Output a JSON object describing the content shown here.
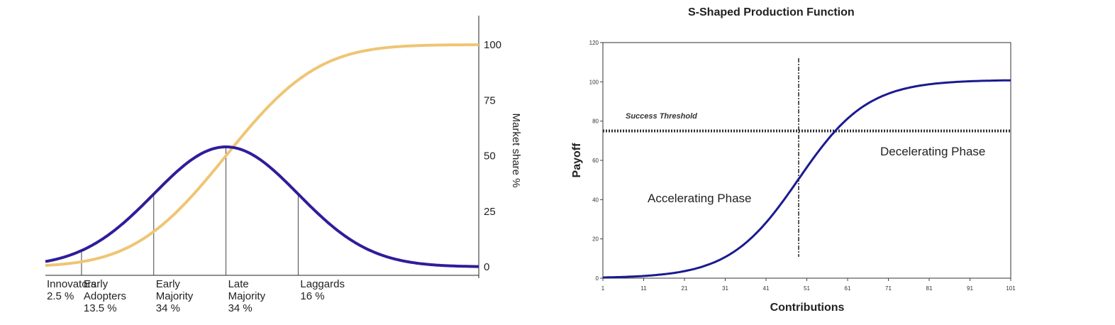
{
  "colors": {
    "bell": "#2e1d9a",
    "adoption": "#efc574",
    "s_curve": "#1b1a8f",
    "axis": "#222222"
  },
  "chart_data": [
    {
      "type": "line",
      "title": "",
      "y2label": "Market share %",
      "y2_ticks": [
        "100",
        "75",
        "50",
        "25",
        "0"
      ],
      "ylim": [
        0,
        100
      ],
      "x_range": [
        -2.5,
        3.5
      ],
      "segments": [
        {
          "name": "Innovators",
          "percent": "2.5 %",
          "boundary_sd": -2
        },
        {
          "name": "Early\nAdopters",
          "percent": "13.5 %",
          "boundary_sd": -1
        },
        {
          "name": "Early\nMajority",
          "percent": "34 %",
          "boundary_sd": 0
        },
        {
          "name": "Late\nMajority",
          "percent": "34 %",
          "boundary_sd": 1
        },
        {
          "name": "Laggards",
          "percent": "16 %",
          "boundary_sd": 3.5
        }
      ],
      "series": [
        {
          "kind": "bell",
          "peak": 54,
          "shape": "normal"
        },
        {
          "kind": "cumulative",
          "shape": "normal-cdf",
          "max": 100
        }
      ]
    },
    {
      "type": "line",
      "title": "S-Shaped Production Function",
      "xlabel": "Contributions",
      "ylabel": "Payoff",
      "xlim": [
        1,
        101
      ],
      "ylim": [
        0,
        120
      ],
      "x_ticks": [
        "1",
        "11",
        "21",
        "31",
        "41",
        "51",
        "61",
        "71",
        "81",
        "91",
        "101"
      ],
      "y_ticks": [
        "0",
        "20",
        "40",
        "60",
        "80",
        "100",
        "120"
      ],
      "threshold": {
        "label": "Success Threshold",
        "y": 75
      },
      "inflection_x": 49,
      "annotations": {
        "accelerating": "Accelerating Phase",
        "decelerating": "Decelerating Phase"
      },
      "series": [
        {
          "shape": "logistic",
          "min": 0,
          "max": 101,
          "midpoint": 49,
          "rate": 0.118
        }
      ]
    }
  ]
}
